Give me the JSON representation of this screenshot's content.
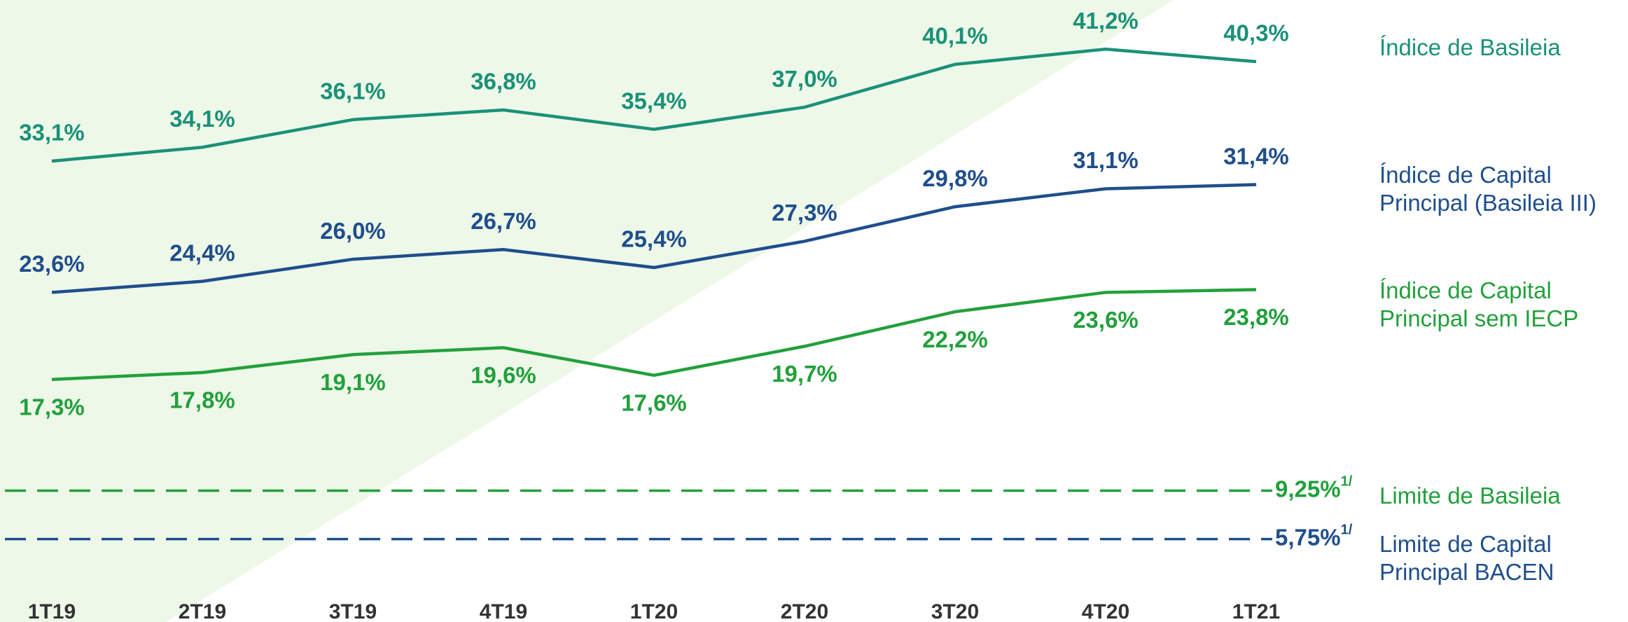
{
  "chart_data": {
    "type": "line",
    "categories": [
      "1T19",
      "2T19",
      "3T19",
      "4T19",
      "1T20",
      "2T20",
      "3T20",
      "4T20",
      "1T21"
    ],
    "series": [
      {
        "name": "Índice de Basileia",
        "color": "#1a9178",
        "values": [
          33.1,
          34.1,
          36.1,
          36.8,
          35.4,
          37.0,
          40.1,
          41.2,
          40.3
        ],
        "value_labels": [
          "33,1%",
          "34,1%",
          "36,1%",
          "36,8%",
          "35,4%",
          "37,0%",
          "40,1%",
          "41,2%",
          "40,3%"
        ]
      },
      {
        "name": "Índice de Capital Principal (Basileia III)",
        "color": "#1f4e8c",
        "values": [
          23.6,
          24.4,
          26.0,
          26.7,
          25.4,
          27.3,
          29.8,
          31.1,
          31.4
        ],
        "value_labels": [
          "23,6%",
          "24,4%",
          "26,0%",
          "26,7%",
          "25,4%",
          "27,3%",
          "29,8%",
          "31,1%",
          "31,4%"
        ]
      },
      {
        "name": "Índice de Capital Principal sem IECP",
        "color": "#22a03c",
        "values": [
          17.3,
          17.8,
          19.1,
          19.6,
          17.6,
          19.7,
          22.2,
          23.6,
          23.8
        ],
        "value_labels": [
          "17,3%",
          "17,8%",
          "19,1%",
          "19,6%",
          "17,6%",
          "19,7%",
          "22,2%",
          "23,6%",
          "23,8%"
        ]
      }
    ],
    "limits": [
      {
        "name": "Limite de Basileia",
        "color": "#22a03c",
        "value": 9.25,
        "value_label": "9,25%",
        "footnote": "1/"
      },
      {
        "name": "Limite de Capital Principal BACEN",
        "color": "#1f4e8c",
        "value": 5.75,
        "value_label": "5,75%",
        "footnote": "1/"
      }
    ]
  }
}
